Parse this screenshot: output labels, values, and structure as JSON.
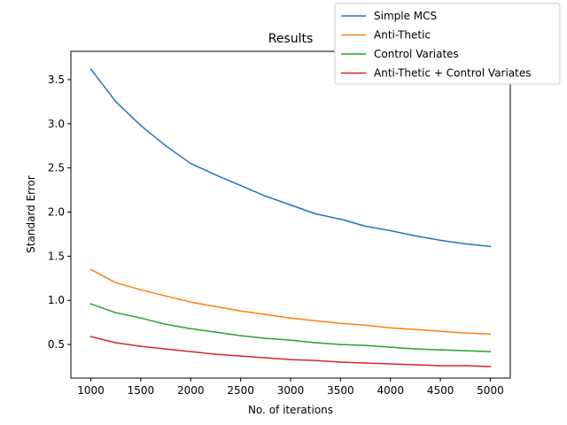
{
  "chart_data": {
    "type": "line",
    "title": "Results",
    "xlabel": "No. of iterations",
    "ylabel": "Standard Error",
    "xlim": [
      800,
      5200
    ],
    "ylim": [
      0.12,
      3.82
    ],
    "xticks": [
      1000,
      1500,
      2000,
      2500,
      3000,
      3500,
      4000,
      4500,
      5000
    ],
    "yticks": [
      0.5,
      1.0,
      1.5,
      2.0,
      2.5,
      3.0,
      3.5
    ],
    "ytick_labels": [
      "0.5",
      "1.0",
      "1.5",
      "2.0",
      "2.5",
      "3.0",
      "3.5"
    ],
    "grid": false,
    "legend_placement": "top-right (outside axes)",
    "x": [
      1000,
      1250,
      1500,
      1750,
      2000,
      2250,
      2500,
      2750,
      3000,
      3250,
      3500,
      3750,
      4000,
      4250,
      4500,
      4750,
      5000
    ],
    "series": [
      {
        "name": "Simple MCS",
        "color": "#1f77b4",
        "values": [
          3.62,
          3.25,
          2.98,
          2.75,
          2.55,
          2.42,
          2.3,
          2.18,
          2.08,
          1.98,
          1.92,
          1.84,
          1.79,
          1.73,
          1.68,
          1.64,
          1.61
        ]
      },
      {
        "name": "Anti-Thetic",
        "color": "#ff7f0e",
        "values": [
          1.35,
          1.2,
          1.12,
          1.05,
          0.98,
          0.93,
          0.88,
          0.84,
          0.8,
          0.77,
          0.74,
          0.72,
          0.69,
          0.67,
          0.65,
          0.63,
          0.62
        ]
      },
      {
        "name": "Control Variates",
        "color": "#2ca02c",
        "values": [
          0.96,
          0.86,
          0.8,
          0.73,
          0.68,
          0.64,
          0.6,
          0.57,
          0.55,
          0.52,
          0.5,
          0.49,
          0.47,
          0.45,
          0.44,
          0.43,
          0.42
        ]
      },
      {
        "name": "Anti-Thetic + Control Variates",
        "color": "#d62728",
        "values": [
          0.59,
          0.52,
          0.48,
          0.45,
          0.42,
          0.39,
          0.37,
          0.35,
          0.33,
          0.32,
          0.3,
          0.29,
          0.28,
          0.27,
          0.26,
          0.26,
          0.25
        ]
      }
    ]
  }
}
